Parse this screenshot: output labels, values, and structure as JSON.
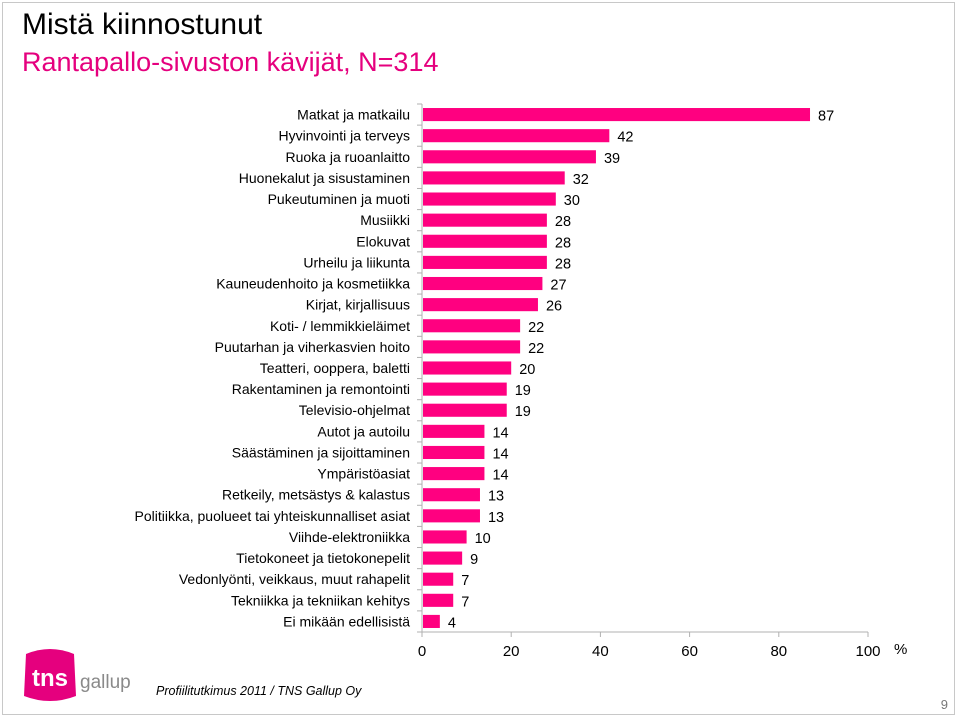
{
  "slide": {
    "title": "Mistä kiinnostunut",
    "subtitle": "Rantapallo-sivuston kävijät, N=314",
    "footnote": "Profiilitutkimus 2011 / TNS Gallup Oy",
    "page_number": "9",
    "logo": {
      "mark": "tns",
      "text": "gallup",
      "icon": "tns-gallup-logo"
    }
  },
  "colors": {
    "bar": "#ff0080",
    "title": "#000000",
    "subtitle": "#e5007e",
    "axis": "#b0b0b0",
    "logo": "#e5007e"
  },
  "chart_data": {
    "type": "bar",
    "orientation": "horizontal",
    "categories": [
      "Matkat ja matkailu",
      "Hyvinvointi ja terveys",
      "Ruoka ja ruoanlaitto",
      "Huonekalut ja sisustaminen",
      "Pukeutuminen ja muoti",
      "Musiikki",
      "Elokuvat",
      "Urheilu ja liikunta",
      "Kauneudenhoito ja kosmetiikka",
      "Kirjat, kirjallisuus",
      "Koti- / lemmikkieläimet",
      "Puutarhan ja viherkasvien hoito",
      "Teatteri, ooppera, baletti",
      "Rakentaminen ja remontointi",
      "Televisio-ohjelmat",
      "Autot ja autoilu",
      "Säästäminen ja sijoittaminen",
      "Ympäristöasiat",
      "Retkeily, metsästys & kalastus",
      "Politiikka, puolueet tai yhteiskunnalliset asiat",
      "Viihde-elektroniikka",
      "Tietokoneet ja tietokonepelit",
      "Vedonlyönti, veikkaus, muut rahapelit",
      "Tekniikka ja tekniikan kehitys",
      "Ei mikään edellisistä"
    ],
    "values": [
      87,
      42,
      39,
      32,
      30,
      28,
      28,
      28,
      27,
      26,
      22,
      22,
      20,
      19,
      19,
      14,
      14,
      14,
      13,
      13,
      10,
      9,
      7,
      7,
      4
    ],
    "xlim": [
      0,
      100
    ],
    "xticks": [
      "0",
      "20",
      "40",
      "60",
      "80",
      "100"
    ],
    "xlabel": "%",
    "ylabel": "",
    "grid": false,
    "legend": "none"
  }
}
